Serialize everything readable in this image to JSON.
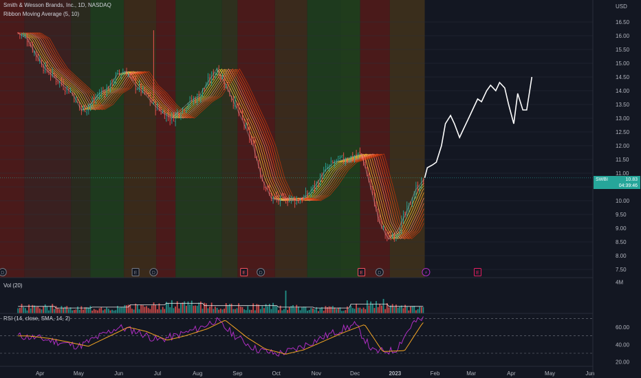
{
  "header": {
    "title": "Smith & Wesson Brands, Inc., 1D, NASDAQ",
    "indicator": "Ribbon Moving Average (5, 10)"
  },
  "volume_pane": {
    "label": "Vol (20)",
    "scale_label": "4M"
  },
  "rsi_pane": {
    "label": "RSI (14, close, SMA, 14, 2)",
    "ticks": [
      "60.00",
      "40.00",
      "20.00"
    ]
  },
  "price_badge": {
    "symbol": "SWBI",
    "price": "10.83",
    "countdown": "04:39:46"
  },
  "colors": {
    "background": "#131722",
    "bull_candle": "#26a69a",
    "bear_candle": "#ef5350",
    "projection_line": "#ffffff",
    "rsi_line": "#b02ec4",
    "rsi_sma": "#f5a623",
    "volume_sma": "#e8e8e8"
  },
  "chart_data": {
    "type": "line",
    "symbol": "SWBI",
    "y_axis": {
      "unit_label": "USD",
      "ticks": [
        "16.50",
        "16.00",
        "15.50",
        "15.00",
        "14.50",
        "14.00",
        "13.50",
        "13.00",
        "12.50",
        "12.00",
        "11.50",
        "11.00",
        "10.50",
        "10.00",
        "9.50",
        "9.00",
        "8.50",
        "8.00",
        "7.50"
      ]
    },
    "x_axis": {
      "ticks": [
        "Apr",
        "May",
        "Jun",
        "Jul",
        "Aug",
        "Sep",
        "Oct",
        "Nov",
        "Dec",
        "2023",
        "Feb",
        "Mar",
        "Apr",
        "May",
        "Jun"
      ]
    },
    "current_price": 10.83,
    "price_series": {
      "name": "SWBI close",
      "x": [
        "2022-03-15",
        "2022-03-22",
        "2022-03-29",
        "2022-04-05",
        "2022-04-12",
        "2022-04-19",
        "2022-04-26",
        "2022-05-03",
        "2022-05-10",
        "2022-05-17",
        "2022-05-24",
        "2022-05-31",
        "2022-06-07",
        "2022-06-14",
        "2022-06-21",
        "2022-06-28",
        "2022-07-05",
        "2022-07-12",
        "2022-07-19",
        "2022-07-26",
        "2022-08-02",
        "2022-08-09",
        "2022-08-16",
        "2022-08-23",
        "2022-08-30",
        "2022-09-06",
        "2022-09-13",
        "2022-09-20",
        "2022-09-27",
        "2022-10-04",
        "2022-10-11",
        "2022-10-18",
        "2022-10-25",
        "2022-11-01",
        "2022-11-08",
        "2022-11-15",
        "2022-11-22",
        "2022-11-29",
        "2022-12-06",
        "2022-12-13",
        "2022-12-20",
        "2022-12-27",
        "2023-01-03",
        "2023-01-10",
        "2023-01-17",
        "2023-01-24"
      ],
      "values": [
        16.1,
        15.9,
        15.3,
        14.8,
        14.5,
        14.2,
        13.9,
        13.3,
        13.5,
        13.9,
        14.1,
        14.6,
        14.7,
        14.2,
        13.9,
        13.5,
        13.2,
        13.0,
        13.3,
        13.6,
        13.8,
        14.3,
        14.8,
        14.2,
        13.5,
        12.8,
        12.0,
        10.8,
        10.1,
        10.0,
        10.1,
        10.0,
        10.2,
        10.6,
        11.1,
        11.4,
        11.5,
        11.6,
        11.7,
        10.5,
        9.2,
        8.6,
        8.9,
        9.6,
        10.4,
        10.8
      ]
    },
    "projection_series": {
      "x": [
        "2023-01-24",
        "2023-01-26",
        "2023-01-30",
        "2023-02-02",
        "2023-02-06",
        "2023-02-09",
        "2023-02-13",
        "2023-02-16",
        "2023-02-20",
        "2023-02-23",
        "2023-02-27",
        "2023-03-02",
        "2023-03-06",
        "2023-03-09",
        "2023-03-13",
        "2023-03-16",
        "2023-03-20",
        "2023-03-23",
        "2023-03-27",
        "2023-03-30",
        "2023-04-03",
        "2023-04-06",
        "2023-04-10",
        "2023-04-13",
        "2023-04-17"
      ],
      "values": [
        10.83,
        11.2,
        11.3,
        11.4,
        12.0,
        12.8,
        13.1,
        12.8,
        12.3,
        12.6,
        13.0,
        13.3,
        13.7,
        13.6,
        14.0,
        14.2,
        14.0,
        14.3,
        14.1,
        13.5,
        12.8,
        13.9,
        13.3,
        13.3,
        14.5
      ]
    },
    "volume_series": {
      "name": "Vol (20)",
      "x": [
        "2022-03",
        "2022-04",
        "2022-05",
        "2022-06",
        "2022-07",
        "2022-08",
        "2022-09",
        "2022-10",
        "2022-11",
        "2022-12",
        "2023-01"
      ],
      "values_millions": [
        0.9,
        0.7,
        0.8,
        1.1,
        1.3,
        1.0,
        1.0,
        0.8,
        0.7,
        1.2,
        0.9
      ]
    },
    "rsi_series": {
      "name": "RSI (14, close, SMA, 14, 2)",
      "x": [
        "2022-03-15",
        "2022-04-01",
        "2022-04-15",
        "2022-05-01",
        "2022-05-15",
        "2022-06-01",
        "2022-06-15",
        "2022-07-01",
        "2022-07-15",
        "2022-08-01",
        "2022-08-15",
        "2022-09-01",
        "2022-09-15",
        "2022-10-01",
        "2022-10-15",
        "2022-11-01",
        "2022-11-15",
        "2022-12-01",
        "2022-12-15",
        "2023-01-01",
        "2023-01-15",
        "2023-01-24"
      ],
      "values": [
        50,
        47,
        43,
        38,
        48,
        60,
        55,
        45,
        50,
        58,
        68,
        48,
        35,
        29,
        34,
        45,
        54,
        63,
        32,
        33,
        65,
        70
      ]
    },
    "rsi_ylim": [
      15,
      75
    ],
    "rsi_levels": [
      70,
      50,
      30
    ],
    "y_range": [
      7.2,
      17.3
    ]
  }
}
